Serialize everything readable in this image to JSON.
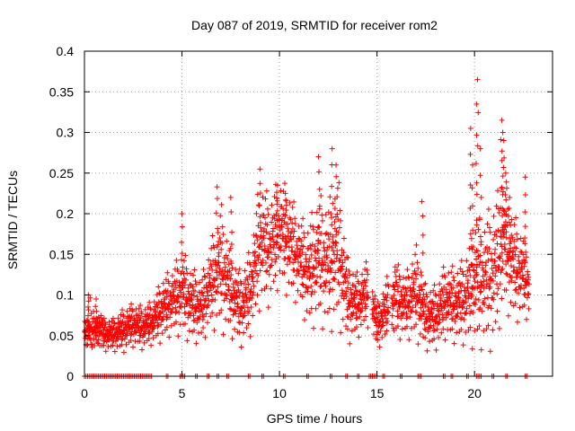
{
  "chart_data": {
    "type": "scatter",
    "title": "Day 087 of 2019, SRMTID for receiver rom2",
    "xlabel": "GPS time / hours",
    "ylabel": "SRMTID / TECUs",
    "xlim": [
      0,
      24
    ],
    "ylim": [
      0,
      0.4
    ],
    "xticks": [
      0,
      5,
      10,
      15,
      20
    ],
    "xtick_labels": [
      "0",
      "5",
      "10",
      "15",
      "20"
    ],
    "yticks": [
      0,
      0.05,
      0.1,
      0.15,
      0.2,
      0.25,
      0.3,
      0.35,
      0.4
    ],
    "ytick_labels": [
      "0",
      "0.05",
      "0.1",
      "0.15",
      "0.2",
      "0.25",
      "0.3",
      "0.35",
      "0.4"
    ],
    "grid": true,
    "marker": "+",
    "color": "#ff0000",
    "series": [
      {
        "name": "SRMTID",
        "profile": {
          "t": [
            0,
            0.5,
            1,
            1.5,
            2,
            2.5,
            3,
            3.5,
            4,
            4.5,
            5,
            5.5,
            6,
            6.5,
            7,
            7.5,
            8,
            8.5,
            9,
            9.5,
            10,
            10.5,
            11,
            11.5,
            12,
            12.5,
            13,
            13.5,
            14,
            14.5,
            15,
            15.5,
            16,
            16.5,
            17,
            17.5,
            18,
            18.5,
            19,
            19.5,
            20,
            20.5,
            21,
            21.5,
            22,
            22.5,
            22.8
          ],
          "level": [
            0.055,
            0.058,
            0.05,
            0.05,
            0.055,
            0.062,
            0.058,
            0.065,
            0.08,
            0.09,
            0.1,
            0.085,
            0.08,
            0.11,
            0.13,
            0.1,
            0.08,
            0.1,
            0.16,
            0.15,
            0.175,
            0.16,
            0.14,
            0.12,
            0.14,
            0.13,
            0.15,
            0.09,
            0.085,
            0.1,
            0.06,
            0.08,
            0.09,
            0.085,
            0.1,
            0.07,
            0.07,
            0.09,
            0.085,
            0.09,
            0.11,
            0.11,
            0.12,
            0.16,
            0.13,
            0.12,
            0.11
          ],
          "spread": [
            0.015,
            0.02,
            0.015,
            0.015,
            0.02,
            0.02,
            0.02,
            0.02,
            0.03,
            0.03,
            0.04,
            0.035,
            0.03,
            0.04,
            0.06,
            0.04,
            0.035,
            0.04,
            0.06,
            0.05,
            0.05,
            0.05,
            0.04,
            0.05,
            0.06,
            0.06,
            0.07,
            0.04,
            0.03,
            0.03,
            0.02,
            0.03,
            0.035,
            0.03,
            0.045,
            0.03,
            0.03,
            0.035,
            0.035,
            0.04,
            0.06,
            0.06,
            0.07,
            0.06,
            0.05,
            0.04,
            0.03
          ]
        },
        "points_per_hour": 95,
        "peaks": [
          [
            0.2,
            0.1
          ],
          [
            0.6,
            0.095
          ],
          [
            5.0,
            0.2
          ],
          [
            6.8,
            0.233
          ],
          [
            7.5,
            0.22
          ],
          [
            9.0,
            0.255
          ],
          [
            9.9,
            0.235
          ],
          [
            10.3,
            0.225
          ],
          [
            12.0,
            0.27
          ],
          [
            12.7,
            0.28
          ],
          [
            12.9,
            0.26
          ],
          [
            17.3,
            0.215
          ],
          [
            19.8,
            0.305
          ],
          [
            19.9,
            0.26
          ],
          [
            20.1,
            0.335
          ],
          [
            20.15,
            0.365
          ],
          [
            20.3,
            0.28
          ],
          [
            21.4,
            0.315
          ],
          [
            21.45,
            0.3
          ],
          [
            21.5,
            0.29
          ],
          [
            21.6,
            0.25
          ],
          [
            21.8,
            0.22
          ],
          [
            22.6,
            0.245
          ]
        ],
        "zero_segments": [
          [
            0.0,
            3.5
          ],
          [
            4.2,
            4.3
          ],
          [
            4.9,
            5.2
          ],
          [
            5.7,
            5.8
          ],
          [
            6.3,
            6.4
          ],
          [
            6.8,
            6.9
          ],
          [
            7.3,
            7.4
          ],
          [
            8.4,
            8.5
          ],
          [
            9.1,
            9.2
          ],
          [
            10.2,
            10.3
          ],
          [
            11.4,
            11.5
          ],
          [
            12.6,
            12.7
          ],
          [
            13.4,
            13.5
          ],
          [
            14.0,
            14.1
          ],
          [
            14.6,
            15.0
          ],
          [
            15.3,
            15.4
          ],
          [
            16.2,
            16.3
          ],
          [
            17.1,
            17.3
          ],
          [
            18.4,
            18.5
          ],
          [
            18.8,
            18.9
          ],
          [
            19.6,
            19.7
          ],
          [
            20.1,
            20.4
          ],
          [
            20.9,
            21.0
          ],
          [
            21.6,
            21.7
          ],
          [
            22.6,
            22.7
          ]
        ],
        "gaps": [
          [
            14.55,
            14.75
          ],
          [
            15.6,
            15.75
          ]
        ]
      }
    ]
  }
}
